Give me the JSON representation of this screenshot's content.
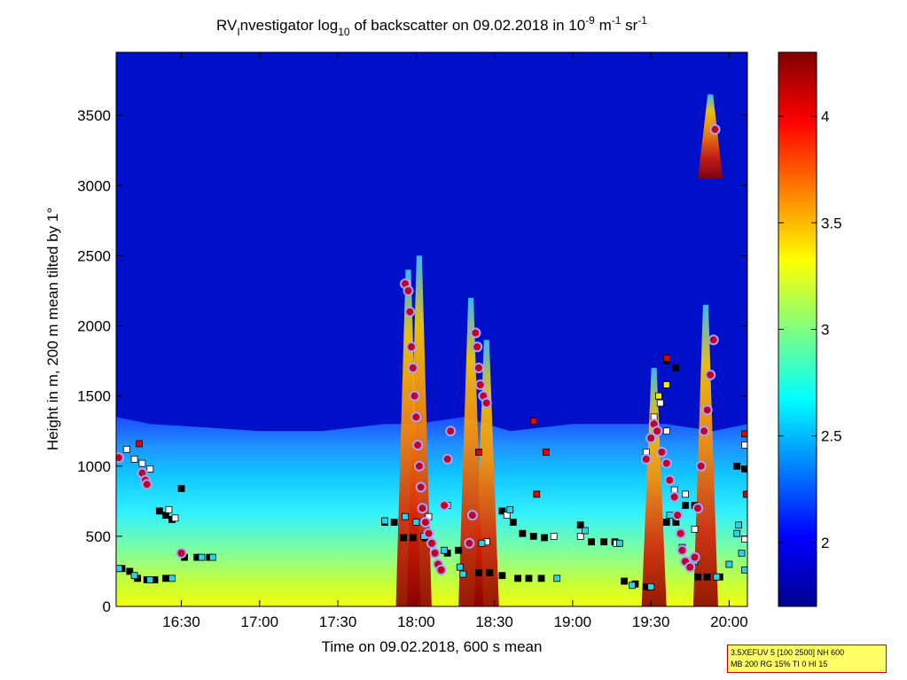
{
  "chart_data": {
    "type": "heatmap",
    "title_parts": {
      "t1": "RV",
      "t1_sub": "I",
      "t2": "nvestigator log",
      "t2_sub": "10",
      "t3": " of backscatter on 09.02.2018 in 10",
      "t3_sup": "-9",
      "t4": " m",
      "t4_sup": "-1",
      "t5": " sr",
      "t5_sup": "-1"
    },
    "xlabel": "Time on 09.02.2018, 600 s mean",
    "ylabel": "Height in m, 200 m mean tilted by 1°",
    "x_range_hours": [
      16.0833,
      20.1167
    ],
    "x_ticks": [
      16.5,
      17.0,
      17.5,
      18.0,
      18.5,
      19.0,
      19.5,
      20.0
    ],
    "x_tick_labels": [
      "16:30",
      "17:00",
      "17:30",
      "18:00",
      "18:30",
      "19:00",
      "19:30",
      "20:00"
    ],
    "ylim": [
      0,
      3950
    ],
    "y_ticks": [
      0,
      500,
      1000,
      1500,
      2000,
      2500,
      3000,
      3500
    ],
    "y_tick_labels": [
      "0",
      "500",
      "1000",
      "1500",
      "2000",
      "2500",
      "3000",
      "3500"
    ],
    "colorbar": {
      "range": [
        1.7,
        4.3
      ],
      "ticks": [
        2,
        2.5,
        3,
        3.5,
        4
      ],
      "tick_labels": [
        "2",
        "2.5",
        "3",
        "3.5",
        "4"
      ]
    },
    "boundary_layer_top_m": [
      [
        16.083,
        1350
      ],
      [
        16.3,
        1300
      ],
      [
        16.6,
        1280
      ],
      [
        17.0,
        1250
      ],
      [
        17.4,
        1250
      ],
      [
        17.8,
        1300
      ],
      [
        18.0,
        1300
      ],
      [
        18.3,
        1350
      ],
      [
        18.6,
        1250
      ],
      [
        19.0,
        1300
      ],
      [
        19.3,
        1300
      ],
      [
        19.6,
        1300
      ],
      [
        19.9,
        1250
      ],
      [
        20.117,
        1300
      ]
    ],
    "plumes": [
      {
        "time": 17.95,
        "top_m": 2400
      },
      {
        "time": 18.02,
        "top_m": 2500
      },
      {
        "time": 18.35,
        "top_m": 2200
      },
      {
        "time": 18.45,
        "top_m": 1900
      },
      {
        "time": 19.52,
        "top_m": 1700
      },
      {
        "time": 19.85,
        "top_m": 2150
      },
      {
        "time": 19.88,
        "top_m": 3650
      }
    ],
    "detections_circles": [
      [
        16.1,
        1060
      ],
      [
        16.25,
        950
      ],
      [
        16.27,
        900
      ],
      [
        16.28,
        870
      ],
      [
        16.5,
        380
      ],
      [
        17.93,
        2300
      ],
      [
        17.95,
        2250
      ],
      [
        17.96,
        2100
      ],
      [
        17.97,
        1850
      ],
      [
        17.98,
        1700
      ],
      [
        17.99,
        1500
      ],
      [
        18.0,
        1350
      ],
      [
        18.01,
        1150
      ],
      [
        18.02,
        1000
      ],
      [
        18.03,
        850
      ],
      [
        18.04,
        700
      ],
      [
        18.06,
        600
      ],
      [
        18.08,
        520
      ],
      [
        18.1,
        450
      ],
      [
        18.12,
        380
      ],
      [
        18.14,
        300
      ],
      [
        18.16,
        260
      ],
      [
        18.18,
        720
      ],
      [
        18.2,
        1050
      ],
      [
        18.22,
        1250
      ],
      [
        18.38,
        1950
      ],
      [
        18.39,
        1850
      ],
      [
        18.4,
        1700
      ],
      [
        18.41,
        1580
      ],
      [
        18.43,
        1500
      ],
      [
        18.45,
        1450
      ],
      [
        18.36,
        650
      ],
      [
        18.34,
        450
      ],
      [
        19.47,
        1050
      ],
      [
        19.5,
        1200
      ],
      [
        19.52,
        1300
      ],
      [
        19.54,
        1250
      ],
      [
        19.57,
        1100
      ],
      [
        19.6,
        1020
      ],
      [
        19.62,
        900
      ],
      [
        19.65,
        780
      ],
      [
        19.67,
        650
      ],
      [
        19.69,
        520
      ],
      [
        19.7,
        400
      ],
      [
        19.72,
        320
      ],
      [
        19.75,
        280
      ],
      [
        19.78,
        350
      ],
      [
        19.8,
        700
      ],
      [
        19.82,
        1000
      ],
      [
        19.84,
        1250
      ],
      [
        19.86,
        1400
      ],
      [
        19.88,
        1650
      ],
      [
        19.9,
        1900
      ],
      [
        19.91,
        3400
      ]
    ],
    "detections_black_squares": [
      [
        16.12,
        270
      ],
      [
        16.17,
        250
      ],
      [
        16.22,
        200
      ],
      [
        16.28,
        190
      ],
      [
        16.33,
        190
      ],
      [
        16.4,
        200
      ],
      [
        16.52,
        350
      ],
      [
        16.6,
        350
      ],
      [
        16.68,
        350
      ],
      [
        16.36,
        680
      ],
      [
        16.4,
        650
      ],
      [
        16.44,
        620
      ],
      [
        16.5,
        840
      ],
      [
        17.8,
        600
      ],
      [
        17.86,
        600
      ],
      [
        17.92,
        490
      ],
      [
        17.98,
        490
      ],
      [
        18.06,
        490
      ],
      [
        18.12,
        380
      ],
      [
        18.2,
        380
      ],
      [
        18.27,
        400
      ],
      [
        18.4,
        240
      ],
      [
        18.47,
        240
      ],
      [
        18.55,
        680
      ],
      [
        18.62,
        600
      ],
      [
        18.68,
        520
      ],
      [
        18.75,
        500
      ],
      [
        18.82,
        490
      ],
      [
        18.55,
        220
      ],
      [
        18.65,
        200
      ],
      [
        18.72,
        200
      ],
      [
        18.8,
        200
      ],
      [
        19.05,
        580
      ],
      [
        19.12,
        460
      ],
      [
        19.2,
        460
      ],
      [
        19.27,
        460
      ],
      [
        19.33,
        180
      ],
      [
        19.4,
        160
      ],
      [
        19.47,
        140
      ],
      [
        19.6,
        1750
      ],
      [
        19.66,
        1700
      ],
      [
        19.6,
        600
      ],
      [
        19.66,
        600
      ],
      [
        19.72,
        720
      ],
      [
        19.78,
        720
      ],
      [
        19.8,
        210
      ],
      [
        19.86,
        210
      ],
      [
        19.94,
        210
      ],
      [
        20.05,
        1000
      ],
      [
        20.1,
        980
      ]
    ],
    "detections_white_squares": [
      [
        16.15,
        1120
      ],
      [
        16.2,
        1050
      ],
      [
        16.25,
        1020
      ],
      [
        16.3,
        980
      ],
      [
        16.46,
        630
      ],
      [
        16.42,
        690
      ],
      [
        18.08,
        640
      ],
      [
        18.2,
        720
      ],
      [
        18.45,
        460
      ],
      [
        18.58,
        650
      ],
      [
        18.88,
        500
      ],
      [
        19.05,
        500
      ],
      [
        19.28,
        450
      ],
      [
        19.47,
        1100
      ],
      [
        19.52,
        1350
      ],
      [
        19.56,
        1450
      ],
      [
        19.6,
        1250
      ],
      [
        19.65,
        830
      ],
      [
        19.72,
        800
      ],
      [
        19.78,
        550
      ],
      [
        20.1,
        1150
      ],
      [
        20.1,
        480
      ]
    ],
    "detections_cyan_squares": [
      [
        16.1,
        270
      ],
      [
        16.2,
        220
      ],
      [
        16.3,
        190
      ],
      [
        16.44,
        200
      ],
      [
        16.63,
        350
      ],
      [
        16.7,
        350
      ],
      [
        17.8,
        610
      ],
      [
        17.93,
        640
      ],
      [
        18.0,
        600
      ],
      [
        18.05,
        500
      ],
      [
        18.18,
        400
      ],
      [
        18.28,
        280
      ],
      [
        18.3,
        230
      ],
      [
        18.42,
        450
      ],
      [
        18.6,
        690
      ],
      [
        18.9,
        200
      ],
      [
        19.08,
        540
      ],
      [
        19.3,
        450
      ],
      [
        19.38,
        150
      ],
      [
        19.5,
        140
      ],
      [
        19.62,
        650
      ],
      [
        19.7,
        420
      ],
      [
        19.78,
        320
      ],
      [
        19.92,
        210
      ],
      [
        20.0,
        300
      ],
      [
        20.05,
        520
      ],
      [
        20.08,
        380
      ],
      [
        20.1,
        260
      ],
      [
        20.06,
        580
      ]
    ],
    "detections_red_squares": [
      [
        16.23,
        1160
      ],
      [
        18.4,
        1100
      ],
      [
        18.75,
        1320
      ],
      [
        18.83,
        1100
      ],
      [
        18.77,
        800
      ],
      [
        19.6,
        1770
      ],
      [
        20.11,
        800
      ],
      [
        20.1,
        1230
      ]
    ],
    "detections_yellow_squares": [
      [
        19.55,
        1500
      ],
      [
        19.6,
        1580
      ]
    ]
  },
  "info_box": {
    "line1": "3.5XEFUV 5 [100 2500] NH 600",
    "line2": "MB 200 RG 15% TI 0 HI 15"
  }
}
